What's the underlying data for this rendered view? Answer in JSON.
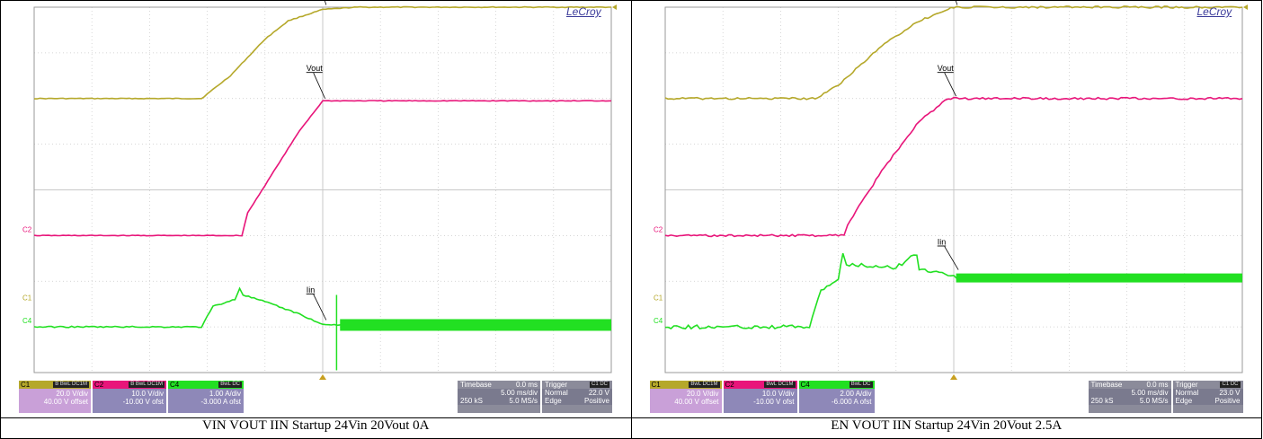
{
  "captions": [
    "VIN VOUT IIN Startup 24Vin 20Vout 0A",
    "EN VOUT IIN Startup 24Vin 20Vout 2.5A"
  ],
  "scopes": [
    {
      "brand": "LeCroy",
      "labels": {
        "vin": "Vin",
        "vout": "Vout",
        "iin": "Iin"
      },
      "channel_markers": [
        "C1",
        "C2",
        "C4"
      ],
      "panels": {
        "c1": {
          "name": "C1",
          "tags": "B BwL DC1M",
          "scale": "20.0 V/div",
          "offset": "40.00 V offset"
        },
        "c2": {
          "name": "C2",
          "tags": "B BwL DC1M",
          "scale": "10.0 V/div",
          "offset": "-10.00 V ofst"
        },
        "c4": {
          "name": "C4",
          "tags": "BwL DC",
          "scale": "1.00 A/div",
          "offset": "-3.000 A ofst"
        },
        "timebase": {
          "label": "Timebase",
          "delay": "0.0 ms",
          "tdiv": "5.00 ms/div",
          "samples": "250 kS",
          "rate": "5.0 MS/s"
        },
        "trigger": {
          "label": "Trigger",
          "tags": "C1 DC",
          "mode": "Normal",
          "level": "22.0 V",
          "type": "Edge",
          "slope": "Positive"
        }
      }
    },
    {
      "brand": "LeCroy",
      "labels": {
        "vin": "Vin",
        "vout": "Vout",
        "iin": "Iin"
      },
      "channel_markers": [
        "C1",
        "C2",
        "C4"
      ],
      "panels": {
        "c1": {
          "name": "C1",
          "tags": "BwL DC1M",
          "scale": "20.0 V/div",
          "offset": "40.00 V offset"
        },
        "c2": {
          "name": "C2",
          "tags": "BwL DC1M",
          "scale": "10.0 V/div",
          "offset": "-10.00 V ofst"
        },
        "c4": {
          "name": "C4",
          "tags": "BwL DC",
          "scale": "2.00 A/div",
          "offset": "-6.000 A ofst"
        },
        "timebase": {
          "label": "Timebase",
          "delay": "0.0 ms",
          "tdiv": "5.00 ms/div",
          "samples": "250 kS",
          "rate": "5.0 MS/s"
        },
        "trigger": {
          "label": "Trigger",
          "tags": "C1 DC",
          "mode": "Normal",
          "level": "23.0 V",
          "type": "Edge",
          "slope": "Positive"
        }
      }
    }
  ],
  "colors": {
    "vin": "#b5a82a",
    "vout": "#e8157a",
    "iin": "#22e022",
    "grid": "#c8c8c8",
    "trigger": "#c8a020"
  },
  "chart_data": [
    {
      "type": "line",
      "x_unit": "ms",
      "x_range": [
        -25,
        25
      ],
      "y_unit": "div",
      "series": [
        {
          "name": "Vin",
          "x": [
            -25,
            -10.5,
            -8,
            -5,
            -3,
            0,
            3,
            8,
            25
          ],
          "y": [
            2.0,
            2.0,
            2.5,
            3.3,
            3.7,
            3.95,
            4.0,
            4.0,
            4.0
          ]
        },
        {
          "name": "Vout",
          "x": [
            -25,
            -7,
            -6.5,
            -4,
            -2,
            -0.3,
            0,
            25
          ],
          "y": [
            -1.0,
            -1.0,
            -0.5,
            0.5,
            1.3,
            1.85,
            1.95,
            1.95
          ]
        },
        {
          "name": "Iin",
          "x": [
            -25,
            -10.5,
            -9.5,
            -7.6,
            -7.2,
            -6.9,
            -5,
            -2,
            0,
            25
          ],
          "y": [
            -3.0,
            -3.0,
            -2.55,
            -2.4,
            -2.15,
            -2.3,
            -2.45,
            -2.72,
            -2.95,
            -2.95
          ]
        }
      ]
    },
    {
      "type": "line",
      "x_unit": "ms",
      "x_range": [
        -25,
        25
      ],
      "y_unit": "div",
      "series": [
        {
          "name": "Vin",
          "x": [
            -25,
            -12,
            -10,
            -6,
            -3,
            0,
            3,
            25
          ],
          "y": [
            2.0,
            2.0,
            2.3,
            3.2,
            3.7,
            4.0,
            4.0,
            4.0
          ]
        },
        {
          "name": "Vout",
          "x": [
            -25,
            -9.5,
            -9.2,
            -6,
            -3,
            -0.5,
            0,
            25
          ],
          "y": [
            -1.0,
            -1.0,
            -0.75,
            0.5,
            1.5,
            2.0,
            2.0,
            2.0
          ]
        },
        {
          "name": "Iin",
          "x": [
            -25,
            -12.5,
            -12,
            -11.5,
            -10,
            -9.6,
            -9.3,
            -8,
            -5,
            -3.2,
            -3,
            -1,
            0,
            25
          ],
          "y": [
            -3.0,
            -3.0,
            -2.6,
            -2.2,
            -1.95,
            -1.4,
            -1.65,
            -1.65,
            -1.7,
            -1.4,
            -1.75,
            -1.8,
            -1.9,
            -1.9
          ]
        }
      ]
    }
  ]
}
